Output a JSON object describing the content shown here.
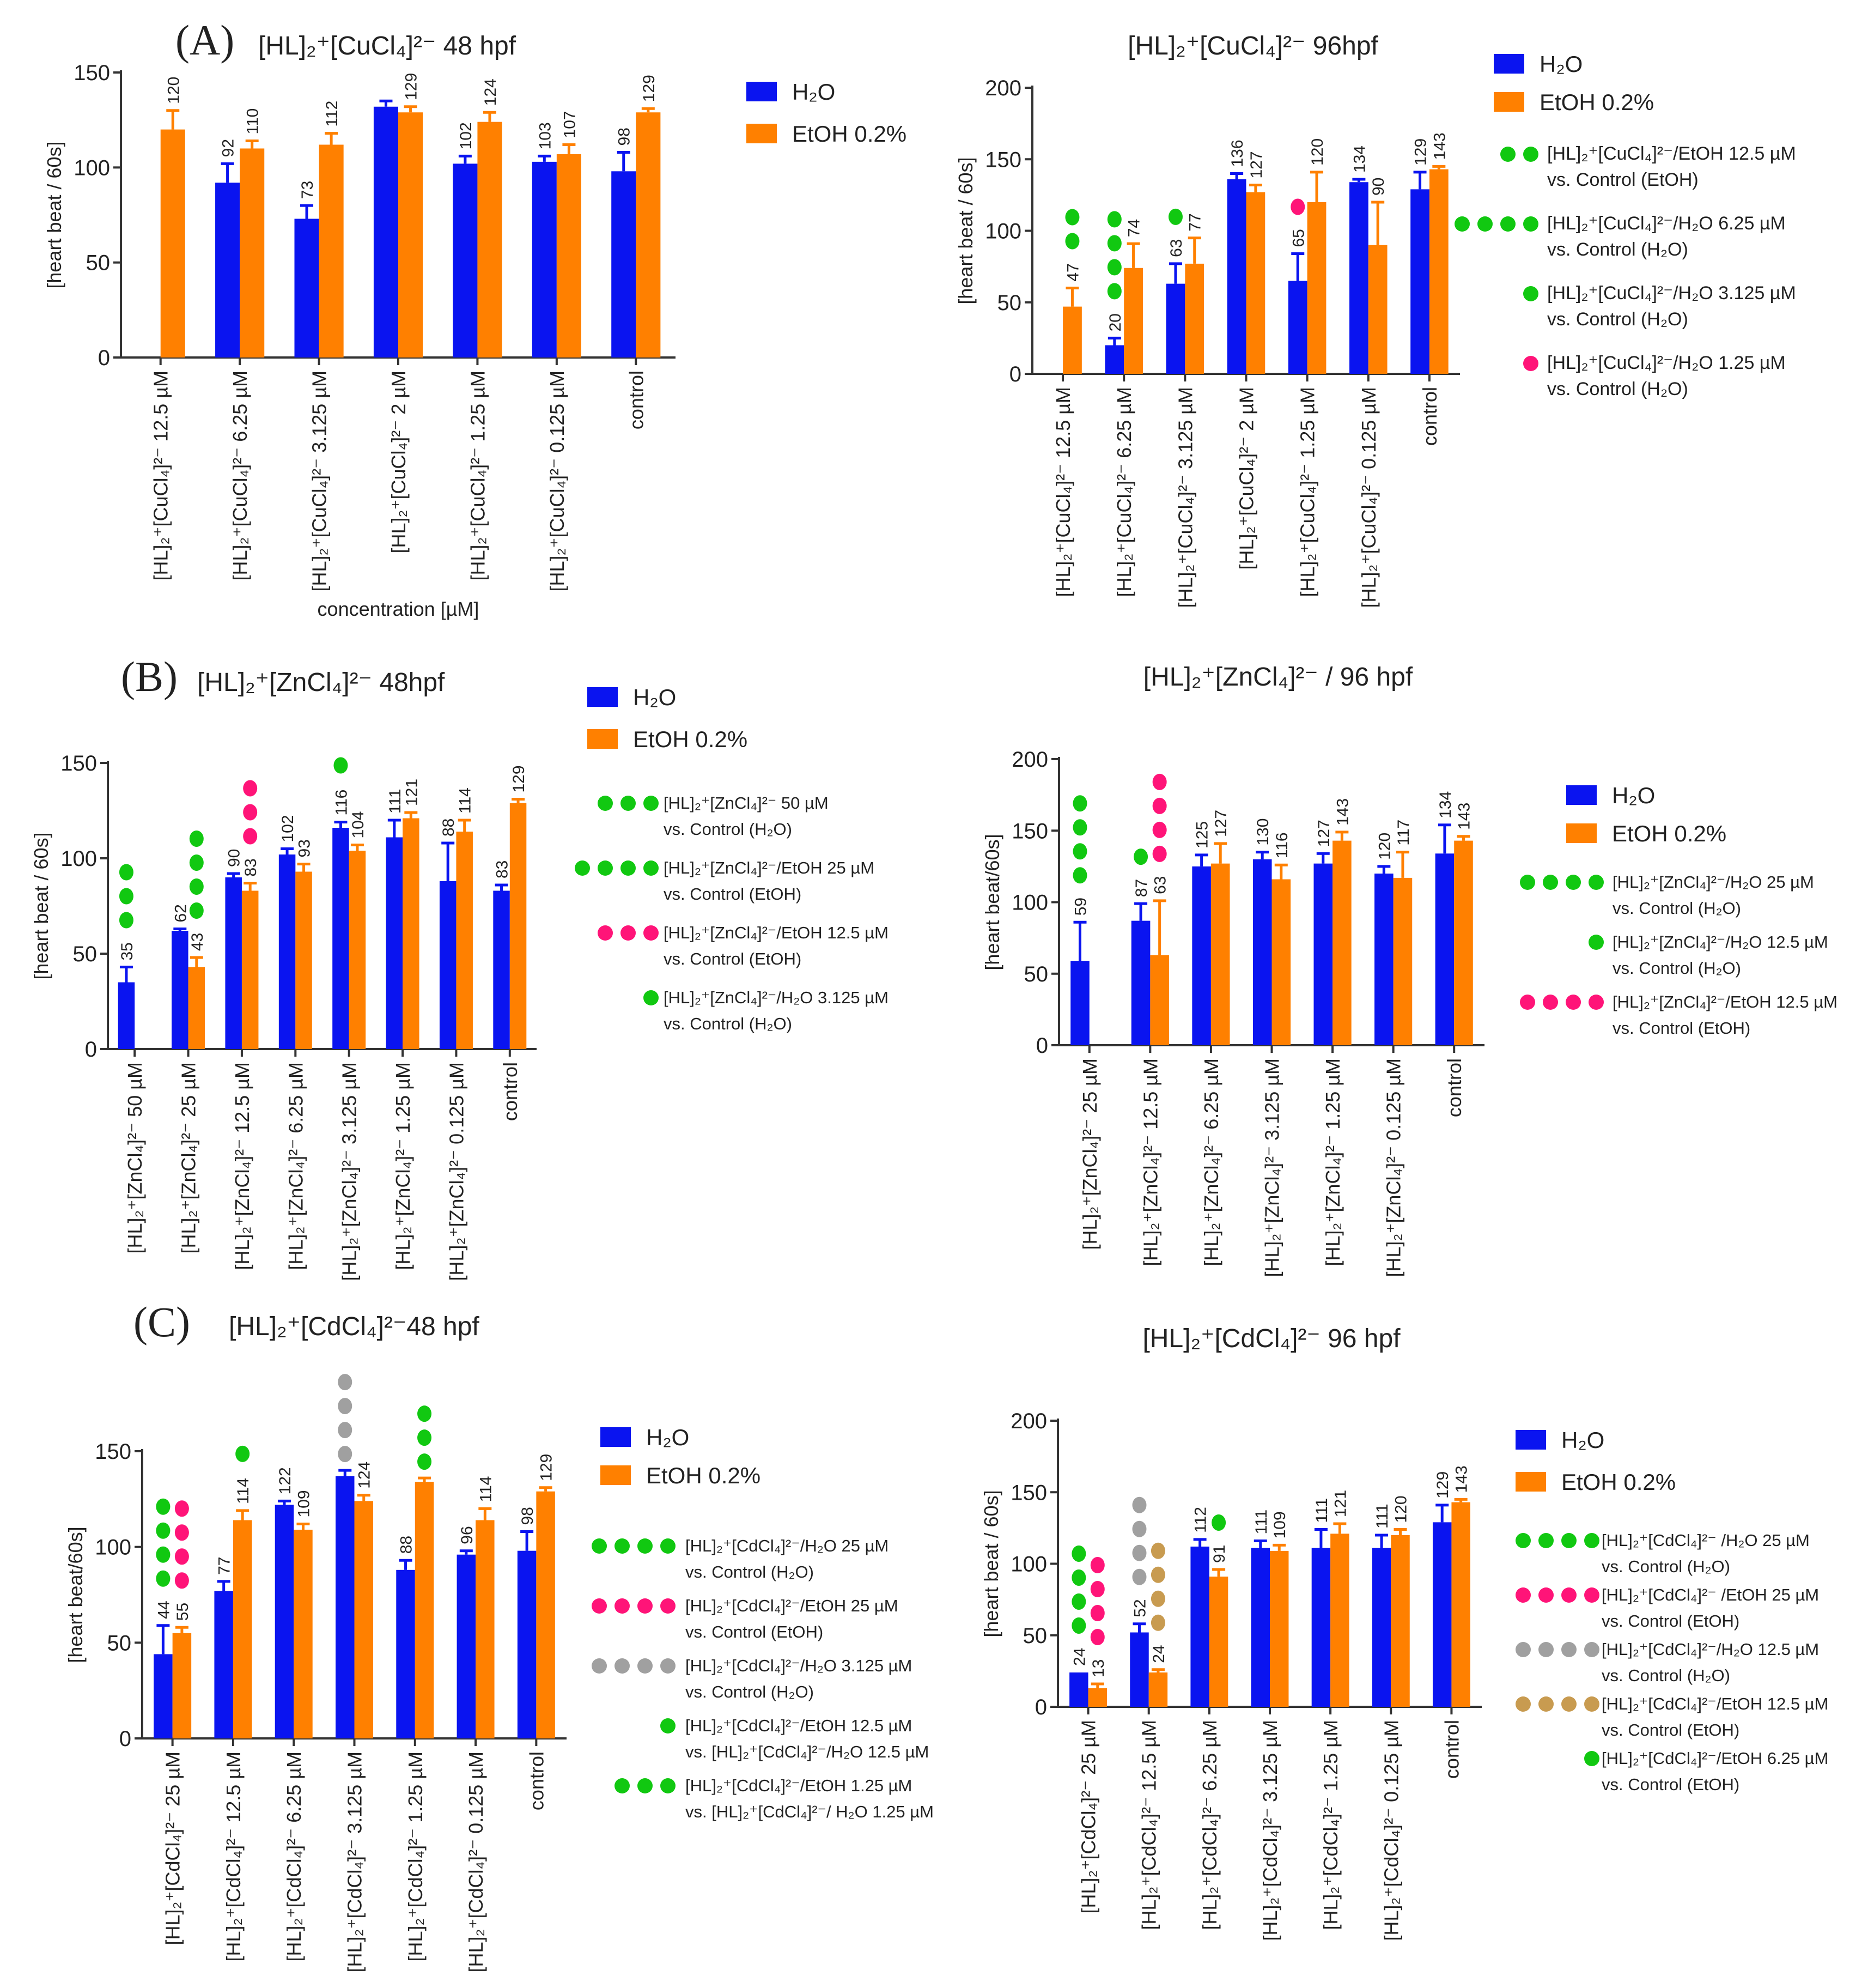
{
  "colors": {
    "h2o": "#0a14f0",
    "etoh": "#ff8000",
    "green": "#11c811",
    "pink": "#ff1478",
    "grey": "#a0a0a0",
    "tan": "#c89b50",
    "axis": "#333333"
  },
  "legend": {
    "h2o": "H₂O",
    "etoh": "EtOH 0.2%"
  },
  "chart_data": [
    {
      "type": "bar",
      "panel_label": "(A)",
      "title": "[HL]₂⁺[CuCl₄]²⁻ 48 hpf",
      "ylabel": "[heart beat / 60s]",
      "xlabel": "concentration [µM]",
      "ylim": [
        0,
        150
      ],
      "yticks": [
        0,
        50,
        100,
        150
      ],
      "categories": [
        "[HL]₂⁺[CuCl₄]²⁻ 12.5 µM",
        "[HL]₂⁺[CuCl₄]²⁻ 6.25 µM",
        "[HL]₂⁺[CuCl₄]²⁻ 3.125 µM",
        "[HL]₂⁺[CuCl₄]²⁻ 2 µM",
        "[HL]₂⁺[CuCl₄]²⁻ 1.25 µM",
        "[HL]₂⁺[CuCl₄]²⁻ 0.125 µM",
        "control"
      ],
      "series": [
        {
          "name": "H₂O",
          "values": [
            null,
            92,
            73,
            132,
            102,
            103,
            98
          ],
          "errors": [
            0,
            10,
            7,
            3,
            4,
            3,
            10
          ],
          "labels": [
            null,
            "92",
            "73",
            null,
            "102",
            "103",
            "98"
          ]
        },
        {
          "name": "EtOH 0.2%",
          "values": [
            120,
            110,
            112,
            129,
            124,
            107,
            129
          ],
          "errors": [
            10,
            4,
            6,
            3,
            5,
            5,
            2
          ],
          "labels": [
            "120",
            "110",
            "112",
            "129",
            "124",
            "107",
            "129"
          ]
        }
      ],
      "sig_marks": [],
      "sig_legend": []
    },
    {
      "type": "bar",
      "title": "[HL]₂⁺[CuCl₄]²⁻ 96hpf",
      "ylabel": "[heart beat / 60s]",
      "ylim": [
        0,
        200
      ],
      "yticks": [
        0,
        50,
        100,
        150,
        200
      ],
      "categories": [
        "[HL]₂⁺[CuCl₄]²⁻ 12.5 µM",
        "[HL]₂⁺[CuCl₄]²⁻ 6.25 µM",
        "[HL]₂⁺[CuCl₄]²⁻ 3.125 µM",
        "[HL]₂⁺[CuCl₄]²⁻ 2 µM",
        "[HL]₂⁺[CuCl₄]²⁻ 1.25 µM",
        "[HL]₂⁺[CuCl₄]²⁻ 0.125 µM",
        "control"
      ],
      "series": [
        {
          "name": "H₂O",
          "values": [
            null,
            20,
            63,
            136,
            65,
            134,
            129
          ],
          "errors": [
            0,
            5,
            14,
            4,
            19,
            2,
            12
          ],
          "labels": [
            null,
            "20",
            "63",
            "136",
            "65",
            "134",
            "129"
          ]
        },
        {
          "name": "EtOH 0.2%",
          "values": [
            47,
            74,
            77,
            127,
            120,
            90,
            143
          ],
          "errors": [
            13,
            17,
            18,
            5,
            21,
            30,
            2
          ],
          "labels": [
            "47",
            "74",
            "77",
            "127",
            "120",
            "90",
            "143"
          ]
        }
      ],
      "sig_marks": [
        {
          "category": 0,
          "series": 1,
          "color": "green",
          "count": 2
        },
        {
          "category": 1,
          "series": 0,
          "color": "green",
          "count": 4
        },
        {
          "category": 2,
          "series": 0,
          "color": "green",
          "count": 1
        },
        {
          "category": 4,
          "series": 0,
          "color": "pink",
          "count": 1
        }
      ],
      "sig_legend": [
        {
          "color": "green",
          "count": 2,
          "line1": "[HL]₂⁺[CuCl₄]²⁻/EtOH 12.5 µM",
          "line2": "vs. Control (EtOH)"
        },
        {
          "color": "green",
          "count": 4,
          "line1": "[HL]₂⁺[CuCl₄]²⁻/H₂O 6.25 µM",
          "line2": "vs. Control (H₂O)"
        },
        {
          "color": "green",
          "count": 1,
          "line1": "[HL]₂⁺[CuCl₄]²⁻/H₂O 3.125 µM",
          "line2": "vs. Control (H₂O)"
        },
        {
          "color": "pink",
          "count": 1,
          "line1": "[HL]₂⁺[CuCl₄]²⁻/H₂O 1.25 µM",
          "line2": "vs. Control (H₂O)"
        }
      ]
    },
    {
      "type": "bar",
      "panel_label": "(B)",
      "title": "[HL]₂⁺[ZnCl₄]²⁻ 48hpf",
      "ylabel": "[heart beat / 60s]",
      "ylim": [
        0,
        150
      ],
      "yticks": [
        0,
        50,
        100,
        150
      ],
      "categories": [
        "[HL]₂⁺[ZnCl₄]²⁻ 50 µM",
        "[HL]₂⁺[ZnCl₄]²⁻ 25 µM",
        "[HL]₂⁺[ZnCl₄]²⁻ 12.5 µM",
        "[HL]₂⁺[ZnCl₄]²⁻ 6.25 µM",
        "[HL]₂⁺[ZnCl₄]²⁻ 3.125 µM",
        "[HL]₂⁺[ZnCl₄]²⁻ 1.25 µM",
        "[HL]₂⁺[ZnCl₄]²⁻ 0.125 µM",
        "control"
      ],
      "series": [
        {
          "name": "H₂O",
          "values": [
            35,
            62,
            90,
            102,
            116,
            111,
            88,
            83
          ],
          "errors": [
            8,
            1,
            2,
            3,
            3,
            9,
            20,
            3
          ],
          "labels": [
            "35",
            "62",
            "90",
            "102",
            "116",
            "111",
            "88",
            "83"
          ]
        },
        {
          "name": "EtOH 0.2%",
          "values": [
            null,
            43,
            83,
            93,
            104,
            121,
            114,
            129
          ],
          "errors": [
            0,
            5,
            4,
            4,
            3,
            3,
            6,
            2
          ],
          "labels": [
            null,
            "43",
            "83",
            "93",
            "104",
            "121",
            "114",
            "129"
          ]
        }
      ],
      "sig_marks": [
        {
          "category": 0,
          "series": 0,
          "color": "green",
          "count": 3
        },
        {
          "category": 1,
          "series": 1,
          "color": "green",
          "count": 4
        },
        {
          "category": 2,
          "series": 1,
          "color": "pink",
          "count": 3
        },
        {
          "category": 4,
          "series": 0,
          "color": "green",
          "count": 1
        }
      ],
      "sig_legend": [
        {
          "color": "green",
          "count": 3,
          "line1": "[HL]₂⁺[ZnCl₄]²⁻ 50 µM",
          "line2": "vs. Control (H₂O)"
        },
        {
          "color": "green",
          "count": 4,
          "line1": "[HL]₂⁺[ZnCl₄]²⁻/EtOH 25 µM",
          "line2": "vs. Control (EtOH)"
        },
        {
          "color": "pink",
          "count": 3,
          "line1": "[HL]₂⁺[ZnCl₄]²⁻/EtOH 12.5 µM",
          "line2": "vs. Control (EtOH)"
        },
        {
          "color": "green",
          "count": 1,
          "line1": "[HL]₂⁺[ZnCl₄]²⁻/H₂O 3.125 µM",
          "line2": "vs. Control (H₂O)"
        }
      ]
    },
    {
      "type": "bar",
      "title": "[HL]₂⁺[ZnCl₄]²⁻ / 96 hpf",
      "ylabel": "[heart beat/60s]",
      "ylim": [
        0,
        200
      ],
      "yticks": [
        0,
        50,
        100,
        150,
        200
      ],
      "categories": [
        "[HL]₂⁺[ZnCl₄]²⁻ 25 µM",
        "[HL]₂⁺[ZnCl₄]²⁻ 12.5 µM",
        "[HL]₂⁺[ZnCl₄]²⁻ 6.25 µM",
        "[HL]₂⁺[ZnCl₄]²⁻ 3.125 µM",
        "[HL]₂⁺[ZnCl₄]²⁻ 1.25 µM",
        "[HL]₂⁺[ZnCl₄]²⁻ 0.125 µM",
        "control"
      ],
      "series": [
        {
          "name": "H₂O",
          "values": [
            59,
            87,
            125,
            130,
            127,
            120,
            134
          ],
          "errors": [
            27,
            12,
            8,
            5,
            7,
            5,
            20
          ],
          "labels": [
            "59",
            "87",
            "125",
            "130",
            "127",
            "120",
            "134"
          ]
        },
        {
          "name": "EtOH 0.2%",
          "values": [
            null,
            63,
            127,
            116,
            143,
            117,
            143
          ],
          "errors": [
            0,
            38,
            14,
            10,
            6,
            18,
            3
          ],
          "labels": [
            null,
            "63",
            "127",
            "116",
            "143",
            "117",
            "143"
          ]
        }
      ],
      "sig_marks": [
        {
          "category": 0,
          "series": 0,
          "color": "green",
          "count": 4
        },
        {
          "category": 1,
          "series": 0,
          "color": "green",
          "count": 1
        },
        {
          "category": 1,
          "series": 1,
          "color": "pink",
          "count": 4
        }
      ],
      "sig_legend": [
        {
          "color": "green",
          "count": 4,
          "line1": "[HL]₂⁺[ZnCl₄]²⁻/H₂O 25 µM",
          "line2": "vs. Control (H₂O)"
        },
        {
          "color": "green",
          "count": 1,
          "line1": "[HL]₂⁺[ZnCl₄]²⁻/H₂O 12.5 µM",
          "line2": "vs. Control (H₂O)"
        },
        {
          "color": "pink",
          "count": 4,
          "line1": "[HL]₂⁺[ZnCl₄]²⁻/EtOH 12.5 µM",
          "line2": "vs. Control (EtOH)"
        }
      ]
    },
    {
      "type": "bar",
      "panel_label": "(C)",
      "title": "[HL]₂⁺[CdCl₄]²⁻48 hpf",
      "ylabel": "[heart beat/60s]",
      "ylim": [
        0,
        150
      ],
      "yticks": [
        0,
        50,
        100,
        150
      ],
      "categories": [
        "[HL]₂⁺[CdCl₄]²⁻ 25 µM",
        "[HL]₂⁺[CdCl₄]²⁻ 12.5 µM",
        "[HL]₂⁺[CdCl₄]²⁻ 6.25 µM",
        "[HL]₂⁺[CdCl₄]²⁻ 3.125 µM",
        "[HL]₂⁺[CdCl₄]²⁻ 1.25 µM",
        "[HL]₂⁺[CdCl₄]²⁻ 0.125 µM",
        "control"
      ],
      "series": [
        {
          "name": "H₂O",
          "values": [
            44,
            77,
            122,
            137,
            88,
            96,
            98
          ],
          "errors": [
            15,
            5,
            2,
            3,
            5,
            2,
            10
          ],
          "labels": [
            "44",
            "77",
            "122",
            null,
            "88",
            "96",
            "98"
          ]
        },
        {
          "name": "EtOH 0.2%",
          "values": [
            55,
            114,
            109,
            124,
            134,
            114,
            129
          ],
          "errors": [
            3,
            5,
            3,
            3,
            2,
            6,
            2
          ],
          "labels": [
            "55",
            "114",
            "109",
            "124",
            null,
            "114",
            "129"
          ]
        }
      ],
      "sig_marks": [
        {
          "category": 0,
          "series": 0,
          "color": "green",
          "count": 4
        },
        {
          "category": 0,
          "series": 1,
          "color": "pink",
          "count": 4
        },
        {
          "category": 1,
          "series": 1,
          "color": "green",
          "count": 1
        },
        {
          "category": 3,
          "series": 0,
          "color": "grey",
          "count": 4
        },
        {
          "category": 4,
          "series": 1,
          "color": "green",
          "count": 3
        }
      ],
      "sig_legend": [
        {
          "color": "green",
          "count": 4,
          "line1": "[HL]₂⁺[CdCl₄]²⁻/H₂O 25 µM",
          "line2": "vs. Control (H₂O)"
        },
        {
          "color": "pink",
          "count": 4,
          "line1": "[HL]₂⁺[CdCl₄]²⁻/EtOH 25 µM",
          "line2": "vs. Control (EtOH)"
        },
        {
          "color": "grey",
          "count": 4,
          "line1": "[HL]₂⁺[CdCl₄]²⁻/H₂O 3.125 µM",
          "line2": "vs. Control (H₂O)"
        },
        {
          "color": "green",
          "count": 1,
          "line1": "[HL]₂⁺[CdCl₄]²⁻/EtOH 12.5 µM",
          "line2": "vs. [HL]₂⁺[CdCl₄]²⁻/H₂O 12.5 µM"
        },
        {
          "color": "green",
          "count": 3,
          "line1": "[HL]₂⁺[CdCl₄]²⁻/EtOH 1.25 µM",
          "line2": "vs. [HL]₂⁺[CdCl₄]²⁻/ H₂O 1.25 µM"
        }
      ]
    },
    {
      "type": "bar",
      "title": "[HL]₂⁺[CdCl₄]²⁻ 96 hpf",
      "ylabel": "[heart beat / 60s]",
      "ylim": [
        0,
        200
      ],
      "yticks": [
        0,
        50,
        100,
        150,
        200
      ],
      "categories": [
        "[HL]₂⁺[CdCl₄]²⁻ 25 µM",
        "[HL]₂⁺[CdCl₄]²⁻ 12.5 µM",
        "[HL]₂⁺[CdCl₄]²⁻ 6.25 µM",
        "[HL]₂⁺[CdCl₄]²⁻ 3.125 µM",
        "[HL]₂⁺[CdCl₄]²⁻ 1.25 µM",
        "[HL]₂⁺[CdCl₄]²⁻ 0.125 µM",
        "control"
      ],
      "series": [
        {
          "name": "H₂O",
          "values": [
            24,
            52,
            112,
            111,
            111,
            111,
            129
          ],
          "errors": [
            0,
            6,
            5,
            5,
            13,
            9,
            12
          ],
          "labels": [
            "24",
            "52",
            "112",
            "111",
            "111",
            "111",
            "129"
          ]
        },
        {
          "name": "EtOH 0.2%",
          "values": [
            13,
            24,
            91,
            109,
            121,
            120,
            143
          ],
          "errors": [
            3,
            2,
            5,
            4,
            7,
            4,
            2
          ],
          "labels": [
            "13",
            "24",
            "91",
            "109",
            "121",
            "120",
            "143"
          ]
        }
      ],
      "sig_marks": [
        {
          "category": 0,
          "series": 0,
          "color": "green",
          "count": 4
        },
        {
          "category": 0,
          "series": 1,
          "color": "pink",
          "count": 4
        },
        {
          "category": 1,
          "series": 0,
          "color": "grey",
          "count": 4
        },
        {
          "category": 1,
          "series": 1,
          "color": "tan",
          "count": 4
        },
        {
          "category": 2,
          "series": 1,
          "color": "green",
          "count": 1
        }
      ],
      "sig_legend": [
        {
          "color": "green",
          "count": 4,
          "line1": "[HL]₂⁺[CdCl₄]²⁻ /H₂O 25 µM",
          "line2": "vs. Control (H₂O)"
        },
        {
          "color": "pink",
          "count": 4,
          "line1": "[HL]₂⁺[CdCl₄]²⁻ /EtOH 25 µM",
          "line2": "vs. Control (EtOH)"
        },
        {
          "color": "grey",
          "count": 4,
          "line1": "[HL]₂⁺[CdCl₄]²⁻/H₂O 12.5 µM",
          "line2": "vs. Control (H₂O)"
        },
        {
          "color": "tan",
          "count": 4,
          "line1": "[HL]₂⁺[CdCl₄]²⁻/EtOH 12.5 µM",
          "line2": "vs. Control (EtOH)"
        },
        {
          "color": "green",
          "count": 1,
          "line1": "[HL]₂⁺[CdCl₄]²⁻/EtOH 6.25 µM",
          "line2": "vs. Control (EtOH)"
        }
      ]
    }
  ]
}
